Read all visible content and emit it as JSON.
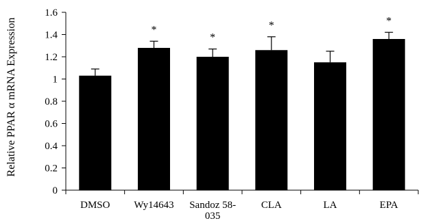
{
  "chart_data": {
    "type": "bar",
    "ylabel": "Relative PPAR α mRNA Expression",
    "xlabel": "",
    "title": "",
    "ylim": [
      0,
      1.6
    ],
    "yticks": [
      "0",
      "0.2",
      "0.4",
      "0.6",
      "0.8",
      "1",
      "1.2",
      "1.4",
      "1.6"
    ],
    "categories": [
      {
        "lines": [
          "DMSO"
        ]
      },
      {
        "lines": [
          "Wy14643"
        ]
      },
      {
        "lines": [
          "Sandoz 58-",
          "035"
        ]
      },
      {
        "lines": [
          "CLA"
        ]
      },
      {
        "lines": [
          "LA"
        ]
      },
      {
        "lines": [
          "EPA"
        ]
      }
    ],
    "values": [
      1.03,
      1.28,
      1.2,
      1.26,
      1.15,
      1.36
    ],
    "errors": [
      0.06,
      0.06,
      0.07,
      0.12,
      0.1,
      0.06
    ],
    "significance": [
      "",
      "*",
      "*",
      "*",
      "",
      "*"
    ],
    "bar_color": "#000000",
    "grid": false,
    "legend": "none"
  }
}
